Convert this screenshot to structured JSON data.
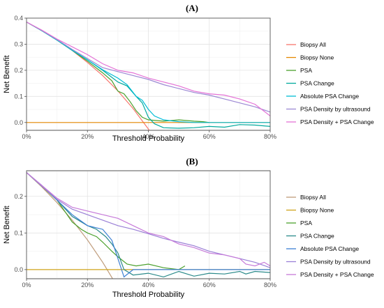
{
  "chart_data": [
    {
      "panel": "(A)",
      "type": "line",
      "title": "(A)",
      "xlabel": "Threshold Probability",
      "ylabel": "Net Benefit",
      "xlim": [
        0,
        0.8
      ],
      "ylim": [
        -0.03,
        0.4
      ],
      "x_ticks": [
        0,
        0.2,
        0.4,
        0.6,
        0.8
      ],
      "x_tick_labels": [
        "0%",
        "20%",
        "40%",
        "60%",
        "80%"
      ],
      "y_ticks": [
        0,
        0.1,
        0.2,
        0.3,
        0.4
      ],
      "y_tick_labels": [
        "0.0",
        "0.1",
        "0.2",
        "0.3",
        "0.4"
      ],
      "grid": true,
      "legend_position": "right",
      "series": [
        {
          "name": "Biopsy All",
          "color": "#f8766d",
          "x": [
            0,
            0.05,
            0.1,
            0.15,
            0.2,
            0.25,
            0.3,
            0.35,
            0.4,
            0.425
          ],
          "y": [
            0.385,
            0.352,
            0.316,
            0.276,
            0.23,
            0.18,
            0.121,
            0.053,
            -0.025,
            -0.07
          ]
        },
        {
          "name": "Biopsy None",
          "color": "#e58700",
          "x": [
            0,
            0.8
          ],
          "y": [
            0,
            0
          ]
        },
        {
          "name": "PSA",
          "color": "#4aa02c",
          "x": [
            0,
            0.05,
            0.1,
            0.15,
            0.2,
            0.25,
            0.28,
            0.3,
            0.32,
            0.34,
            0.36,
            0.38,
            0.4,
            0.45,
            0.5,
            0.55,
            0.58,
            0.6
          ],
          "y": [
            0.385,
            0.352,
            0.316,
            0.276,
            0.235,
            0.19,
            0.16,
            0.12,
            0.11,
            0.08,
            0.045,
            0.02,
            0.01,
            0.005,
            0.01,
            0.005,
            0.003,
            0
          ]
        },
        {
          "name": "PSA Change",
          "color": "#00a99d",
          "x": [
            0,
            0.05,
            0.1,
            0.15,
            0.2,
            0.25,
            0.3,
            0.33,
            0.36,
            0.38,
            0.4,
            0.42,
            0.45,
            0.5,
            0.55,
            0.6,
            0.65,
            0.7,
            0.75,
            0.8
          ],
          "y": [
            0.385,
            0.352,
            0.316,
            0.277,
            0.24,
            0.2,
            0.155,
            0.14,
            0.1,
            0.075,
            0.02,
            -0.005,
            -0.02,
            -0.022,
            -0.02,
            -0.015,
            -0.018,
            -0.008,
            -0.01,
            -0.015
          ]
        },
        {
          "name": "Absolute PSA Change",
          "color": "#00bcd4",
          "x": [
            0,
            0.05,
            0.1,
            0.15,
            0.2,
            0.25,
            0.3,
            0.33,
            0.36,
            0.38,
            0.4,
            0.42,
            0.45,
            0.5,
            0.55,
            0.6,
            0.65,
            0.7,
            0.75,
            0.8
          ],
          "y": [
            0.385,
            0.352,
            0.316,
            0.277,
            0.24,
            0.202,
            0.17,
            0.145,
            0.1,
            0.085,
            0.05,
            0.025,
            0.01,
            0.003,
            0,
            0,
            0,
            0,
            0,
            0
          ]
        },
        {
          "name": "PSA Density by ultrasound",
          "color": "#9c88d4",
          "x": [
            0,
            0.05,
            0.1,
            0.15,
            0.2,
            0.25,
            0.3,
            0.35,
            0.4,
            0.45,
            0.5,
            0.55,
            0.6,
            0.65,
            0.7,
            0.75,
            0.8
          ],
          "y": [
            0.385,
            0.353,
            0.318,
            0.28,
            0.245,
            0.21,
            0.195,
            0.18,
            0.165,
            0.145,
            0.13,
            0.115,
            0.105,
            0.09,
            0.075,
            0.06,
            0.04
          ]
        },
        {
          "name": "PSA Density + PSA Change",
          "color": "#e472d6",
          "x": [
            0,
            0.05,
            0.1,
            0.15,
            0.2,
            0.25,
            0.3,
            0.35,
            0.4,
            0.45,
            0.5,
            0.55,
            0.6,
            0.65,
            0.7,
            0.75,
            0.8
          ],
          "y": [
            0.385,
            0.354,
            0.32,
            0.29,
            0.26,
            0.225,
            0.2,
            0.19,
            0.17,
            0.155,
            0.14,
            0.12,
            0.11,
            0.105,
            0.09,
            0.07,
            0.025
          ]
        }
      ]
    },
    {
      "panel": "(B)",
      "type": "line",
      "title": "(B)",
      "xlabel": "Threshold Probability",
      "ylabel": "Net Benefit",
      "xlim": [
        0,
        0.8
      ],
      "ylim": [
        -0.025,
        0.27
      ],
      "x_ticks": [
        0,
        0.2,
        0.4,
        0.6,
        0.8
      ],
      "x_tick_labels": [
        "0%",
        "20%",
        "40%",
        "60%",
        "80%"
      ],
      "y_ticks": [
        0,
        0.1,
        0.2
      ],
      "y_tick_labels": [
        "0.0",
        "0.1",
        "0.2"
      ],
      "grid": true,
      "legend_position": "right",
      "series": [
        {
          "name": "Biopsy All",
          "color": "#bf9b7a",
          "x": [
            0,
            0.05,
            0.1,
            0.15,
            0.2,
            0.25,
            0.29
          ],
          "y": [
            0.265,
            0.226,
            0.183,
            0.135,
            0.081,
            0.02,
            -0.035
          ]
        },
        {
          "name": "Biopsy None",
          "color": "#cfa31a",
          "x": [
            0,
            0.8
          ],
          "y": [
            0,
            0
          ]
        },
        {
          "name": "PSA",
          "color": "#4aa02c",
          "x": [
            0,
            0.05,
            0.1,
            0.15,
            0.18,
            0.2,
            0.23,
            0.25,
            0.28,
            0.3,
            0.33,
            0.36,
            0.4,
            0.45,
            0.5,
            0.52
          ],
          "y": [
            0.265,
            0.228,
            0.19,
            0.13,
            0.11,
            0.1,
            0.09,
            0.075,
            0.05,
            0.035,
            0.015,
            0.01,
            0.015,
            0.005,
            0,
            0.01
          ]
        },
        {
          "name": "PSA Change",
          "color": "#2a8a8a",
          "x": [
            0,
            0.05,
            0.1,
            0.15,
            0.2,
            0.23,
            0.26,
            0.28,
            0.3,
            0.32,
            0.35,
            0.4,
            0.45,
            0.5,
            0.55,
            0.6,
            0.65,
            0.7,
            0.72,
            0.75,
            0.8
          ],
          "y": [
            0.265,
            0.228,
            0.19,
            0.145,
            0.12,
            0.11,
            0.09,
            0.07,
            0.045,
            0.0,
            -0.015,
            -0.01,
            -0.02,
            -0.005,
            -0.018,
            -0.01,
            -0.012,
            -0.005,
            -0.012,
            -0.005,
            -0.008
          ]
        },
        {
          "name": "Absolute PSA Change",
          "color": "#3b7fd4",
          "x": [
            0,
            0.05,
            0.1,
            0.15,
            0.2,
            0.25,
            0.28,
            0.3,
            0.32,
            0.35,
            0.4,
            0.5,
            0.6,
            0.7,
            0.8
          ],
          "y": [
            0.265,
            0.23,
            0.19,
            0.15,
            0.12,
            0.11,
            0.08,
            0.03,
            -0.02,
            0,
            0,
            0,
            0,
            0,
            0
          ]
        },
        {
          "name": "PSA Density by ultrasound",
          "color": "#9a7fd6",
          "x": [
            0,
            0.05,
            0.1,
            0.15,
            0.2,
            0.25,
            0.3,
            0.35,
            0.4,
            0.45,
            0.5,
            0.55,
            0.6,
            0.65,
            0.7,
            0.75,
            0.8
          ],
          "y": [
            0.265,
            0.228,
            0.192,
            0.165,
            0.15,
            0.135,
            0.12,
            0.11,
            0.098,
            0.085,
            0.075,
            0.065,
            0.05,
            0.04,
            0.03,
            0.02,
            0.005
          ]
        },
        {
          "name": "PSA Density + PSA Change",
          "color": "#c67ad9",
          "x": [
            0,
            0.05,
            0.1,
            0.15,
            0.2,
            0.25,
            0.3,
            0.35,
            0.4,
            0.45,
            0.5,
            0.55,
            0.6,
            0.65,
            0.7,
            0.72,
            0.75,
            0.78,
            0.8
          ],
          "y": [
            0.265,
            0.23,
            0.195,
            0.17,
            0.16,
            0.15,
            0.14,
            0.12,
            0.1,
            0.09,
            0.07,
            0.06,
            0.045,
            0.04,
            0.03,
            0.015,
            0.01,
            0.02,
            0.01
          ]
        }
      ]
    }
  ]
}
